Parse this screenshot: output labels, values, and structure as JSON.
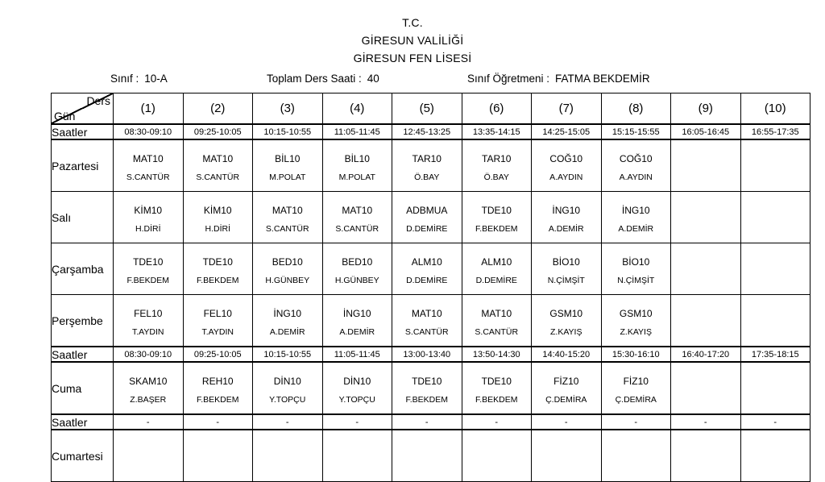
{
  "header": {
    "line1": "T.C.",
    "line2": "GİRESUN VALİLİĞİ",
    "line3": "GİRESUN FEN LİSESİ"
  },
  "info": {
    "class_label": "Sınıf :",
    "class_value": "10-A",
    "total_label": "Toplam Ders Saati :",
    "total_value": "40",
    "teacher_label": "Sınıf Öğretmeni :",
    "teacher_value": "FATMA BEKDEMİR"
  },
  "table": {
    "corner": {
      "ders": "Ders",
      "gun": "Gün"
    },
    "saatler_label": "Saatler",
    "periods": [
      "(1)",
      "(2)",
      "(3)",
      "(4)",
      "(5)",
      "(6)",
      "(7)",
      "(8)",
      "(9)",
      "(10)"
    ],
    "times1": [
      "08:30-09:10",
      "09:25-10:05",
      "10:15-10:55",
      "11:05-11:45",
      "12:45-13:25",
      "13:35-14:15",
      "14:25-15:05",
      "15:15-15:55",
      "16:05-16:45",
      "16:55-17:35"
    ],
    "times2": [
      "08:30-09:10",
      "09:25-10:05",
      "10:15-10:55",
      "11:05-11:45",
      "13:00-13:40",
      "13:50-14:30",
      "14:40-15:20",
      "15:30-16:10",
      "16:40-17:20",
      "17:35-18:15"
    ],
    "times3": [
      "-",
      "-",
      "-",
      "-",
      "-",
      "-",
      "-",
      "-",
      "-",
      "-"
    ],
    "days": [
      {
        "name": "Pazartesi",
        "cells": [
          {
            "course": "MAT10",
            "teacher": "S.CANTÜR"
          },
          {
            "course": "MAT10",
            "teacher": "S.CANTÜR"
          },
          {
            "course": "BİL10",
            "teacher": "M.POLAT"
          },
          {
            "course": "BİL10",
            "teacher": "M.POLAT"
          },
          {
            "course": "TAR10",
            "teacher": "Ö.BAY"
          },
          {
            "course": "TAR10",
            "teacher": "Ö.BAY"
          },
          {
            "course": "COĞ10",
            "teacher": "A.AYDIN"
          },
          {
            "course": "COĞ10",
            "teacher": "A.AYDIN"
          },
          {
            "course": "",
            "teacher": ""
          },
          {
            "course": "",
            "teacher": ""
          }
        ]
      },
      {
        "name": "Salı",
        "cells": [
          {
            "course": "KİM10",
            "teacher": "H.DİRİ"
          },
          {
            "course": "KİM10",
            "teacher": "H.DİRİ"
          },
          {
            "course": "MAT10",
            "teacher": "S.CANTÜR"
          },
          {
            "course": "MAT10",
            "teacher": "S.CANTÜR"
          },
          {
            "course": "ADBMUA",
            "teacher": "D.DEMİRE"
          },
          {
            "course": "TDE10",
            "teacher": "F.BEKDEM"
          },
          {
            "course": "İNG10",
            "teacher": "A.DEMİR"
          },
          {
            "course": "İNG10",
            "teacher": "A.DEMİR"
          },
          {
            "course": "",
            "teacher": ""
          },
          {
            "course": "",
            "teacher": ""
          }
        ]
      },
      {
        "name": "Çarşamba",
        "cells": [
          {
            "course": "TDE10",
            "teacher": "F.BEKDEM"
          },
          {
            "course": "TDE10",
            "teacher": "F.BEKDEM"
          },
          {
            "course": "BED10",
            "teacher": "H.GÜNBEY"
          },
          {
            "course": "BED10",
            "teacher": "H.GÜNBEY"
          },
          {
            "course": "ALM10",
            "teacher": "D.DEMİRE"
          },
          {
            "course": "ALM10",
            "teacher": "D.DEMİRE"
          },
          {
            "course": "BİO10",
            "teacher": "N.ÇİMŞİT"
          },
          {
            "course": "BİO10",
            "teacher": "N.ÇİMŞİT"
          },
          {
            "course": "",
            "teacher": ""
          },
          {
            "course": "",
            "teacher": ""
          }
        ]
      },
      {
        "name": "Perşembe",
        "cells": [
          {
            "course": "FEL10",
            "teacher": "T.AYDIN"
          },
          {
            "course": "FEL10",
            "teacher": "T.AYDIN"
          },
          {
            "course": "İNG10",
            "teacher": "A.DEMİR"
          },
          {
            "course": "İNG10",
            "teacher": "A.DEMİR"
          },
          {
            "course": "MAT10",
            "teacher": "S.CANTÜR"
          },
          {
            "course": "MAT10",
            "teacher": "S.CANTÜR"
          },
          {
            "course": "GSM10",
            "teacher": "Z.KAYIŞ"
          },
          {
            "course": "GSM10",
            "teacher": "Z.KAYIŞ"
          },
          {
            "course": "",
            "teacher": ""
          },
          {
            "course": "",
            "teacher": ""
          }
        ]
      },
      {
        "name": "Cuma",
        "cells": [
          {
            "course": "SKAM10",
            "teacher": "Z.BAŞER"
          },
          {
            "course": "REH10",
            "teacher": "F.BEKDEM"
          },
          {
            "course": "DİN10",
            "teacher": "Y.TOPÇU"
          },
          {
            "course": "DİN10",
            "teacher": "Y.TOPÇU"
          },
          {
            "course": "TDE10",
            "teacher": "F.BEKDEM"
          },
          {
            "course": "TDE10",
            "teacher": "F.BEKDEM"
          },
          {
            "course": "FİZ10",
            "teacher": "Ç.DEMİRA"
          },
          {
            "course": "FİZ10",
            "teacher": "Ç.DEMİRA"
          },
          {
            "course": "",
            "teacher": ""
          },
          {
            "course": "",
            "teacher": ""
          }
        ]
      },
      {
        "name": "Cumartesi",
        "cells": [
          {
            "course": "",
            "teacher": ""
          },
          {
            "course": "",
            "teacher": ""
          },
          {
            "course": "",
            "teacher": ""
          },
          {
            "course": "",
            "teacher": ""
          },
          {
            "course": "",
            "teacher": ""
          },
          {
            "course": "",
            "teacher": ""
          },
          {
            "course": "",
            "teacher": ""
          },
          {
            "course": "",
            "teacher": ""
          },
          {
            "course": "",
            "teacher": ""
          },
          {
            "course": "",
            "teacher": ""
          }
        ]
      }
    ]
  }
}
